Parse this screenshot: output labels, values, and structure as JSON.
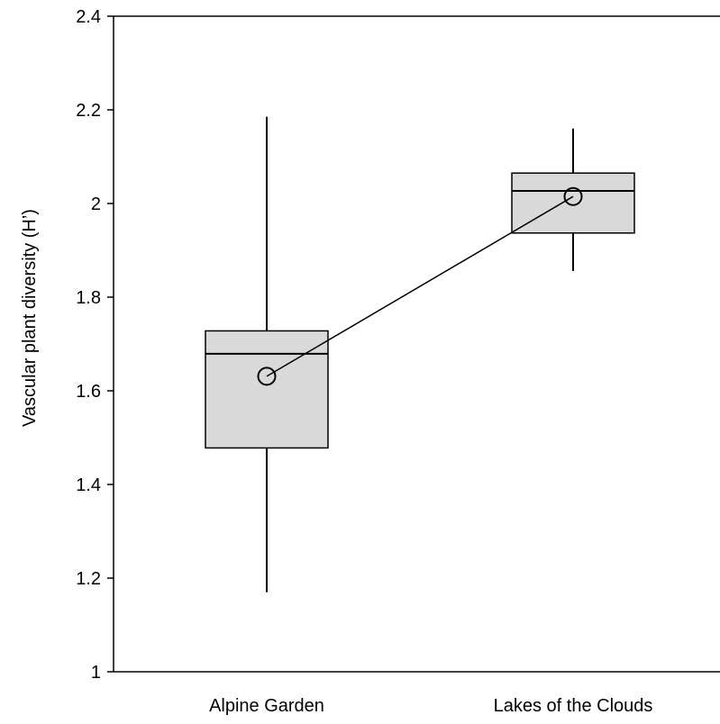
{
  "chart_data": {
    "type": "box",
    "title": "",
    "xlabel": "",
    "ylabel": "Vascular plant diversity (H’)",
    "ylim": [
      1,
      2.4
    ],
    "yticks": [
      "1",
      "1.2",
      "1.4",
      "1.6",
      "1.8",
      "2",
      "2.2",
      "2.4"
    ],
    "categories": [
      "Alpine Garden",
      "Lakes of the Clouds"
    ],
    "boxes": [
      {
        "category": "Alpine Garden",
        "whisker_low": 1.17,
        "q1": 1.478,
        "median": 1.679,
        "q3": 1.728,
        "whisker_high": 2.185,
        "mean": 1.631
      },
      {
        "category": "Lakes of the Clouds",
        "whisker_low": 1.856,
        "q1": 1.937,
        "median": 2.027,
        "q3": 2.065,
        "whisker_high": 2.16,
        "mean": 2.015
      }
    ],
    "mean_line": true,
    "grid": false,
    "legend": "none",
    "colors": {
      "box_fill": "#d9d9d9",
      "stroke": "#000000"
    }
  }
}
